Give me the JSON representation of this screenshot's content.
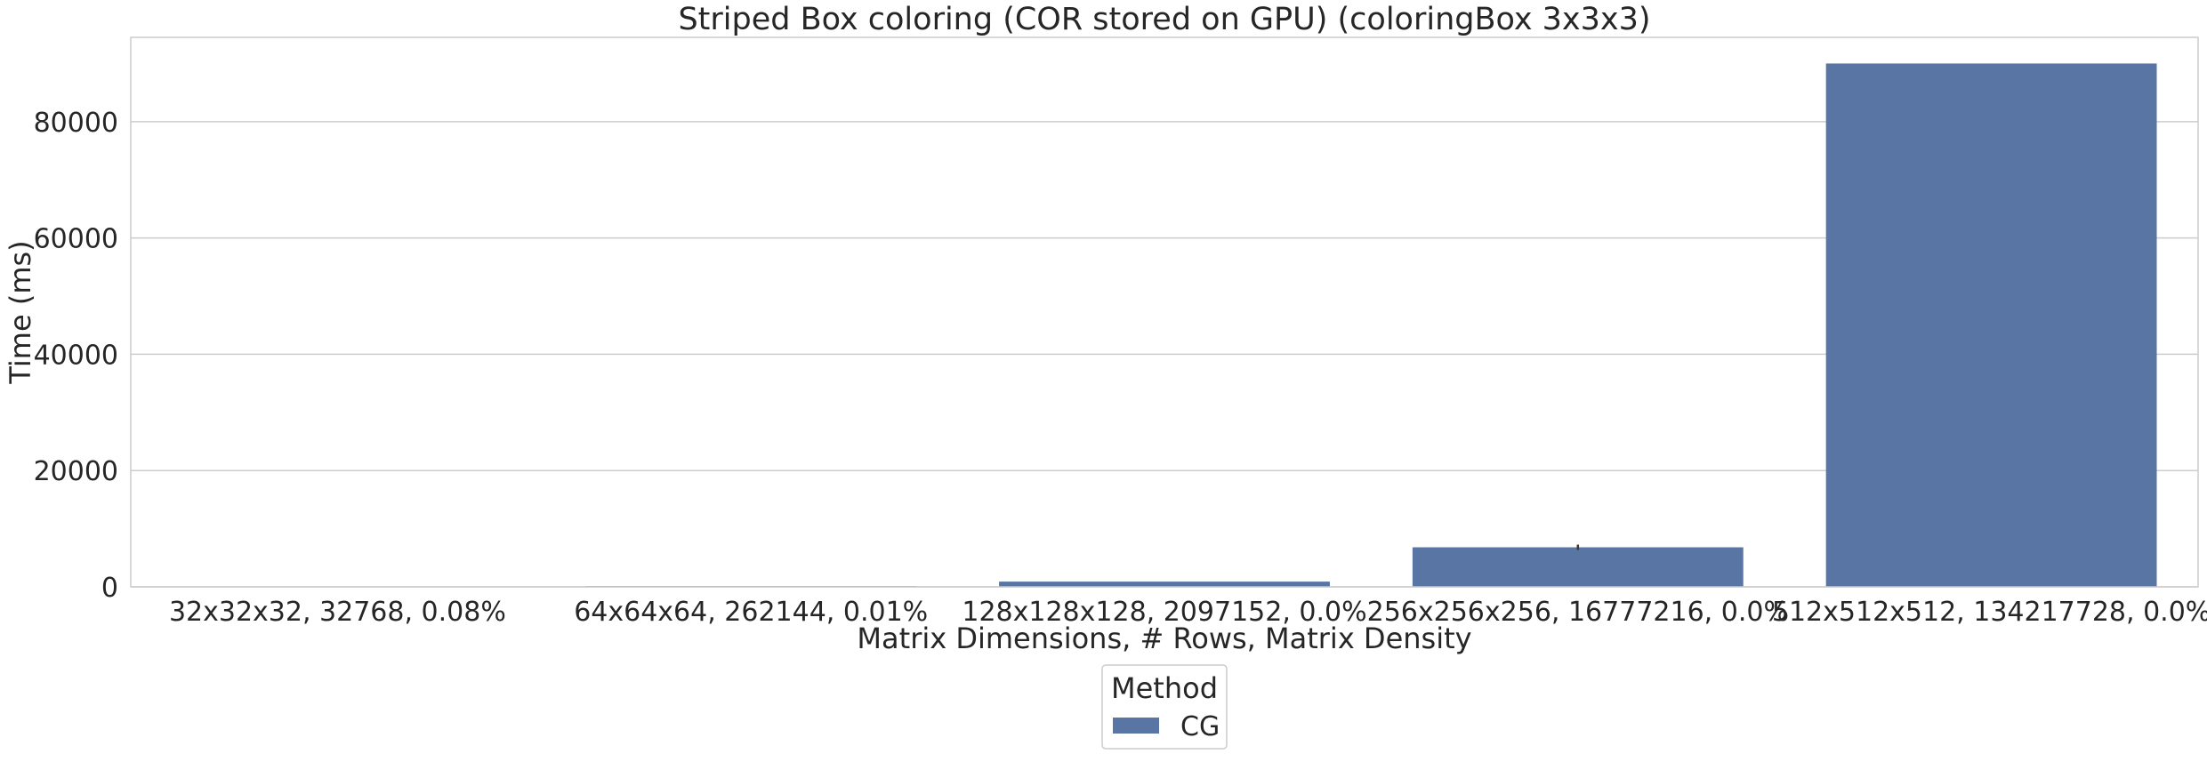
{
  "chart_data": {
    "type": "bar",
    "title": "Striped Box coloring (COR stored on GPU) (coloringBox 3x3x3)",
    "xlabel": "Matrix Dimensions, # Rows, Matrix Density",
    "ylabel": "Time (ms)",
    "categories": [
      "32x32x32, 32768, 0.08%",
      "64x64x64, 262144, 0.01%",
      "128x128x128, 2097152, 0.0%",
      "256x256x256, 16777216, 0.0%",
      "512x512x512, 134217728, 0.0%"
    ],
    "series": [
      {
        "name": "CG",
        "values": [
          20,
          120,
          900,
          6800,
          90000
        ],
        "color": "#5975a4"
      }
    ],
    "ylim": [
      0,
      94500
    ],
    "yticks": [
      0,
      20000,
      40000,
      60000,
      80000
    ],
    "ytick_labels": [
      "0",
      "20000",
      "40000",
      "60000",
      "80000"
    ],
    "legend": {
      "title": "Method",
      "entries": [
        "CG"
      ],
      "placement": "bottom-center"
    },
    "grid": "horizontal"
  }
}
